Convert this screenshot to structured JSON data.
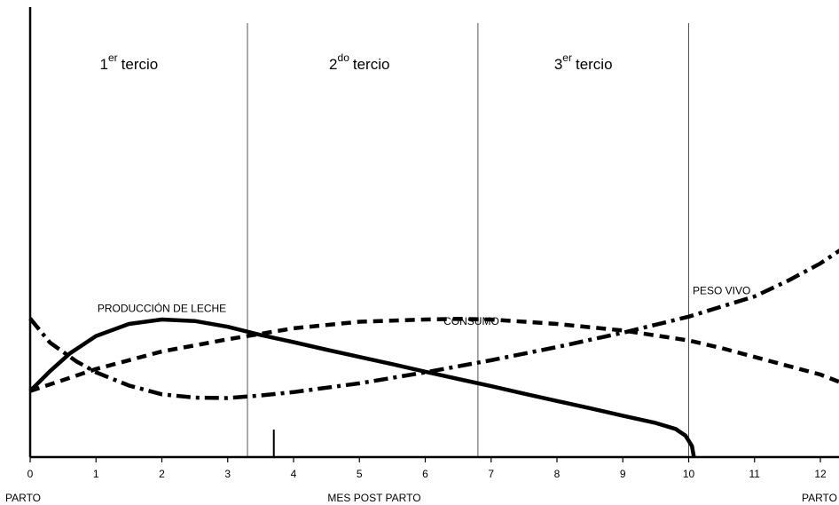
{
  "chart_data": {
    "type": "line",
    "xlabel": "MES POST PARTO",
    "ylabel": "",
    "xlim": [
      0,
      12.3
    ],
    "ylim": [
      0,
      100
    ],
    "grid": false,
    "legend": "none",
    "x_ticks": [
      {
        "value": 0,
        "label": "0"
      },
      {
        "value": 1,
        "label": "1"
      },
      {
        "value": 2,
        "label": "2"
      },
      {
        "value": 3,
        "label": "3"
      },
      {
        "value": 4,
        "label": "4"
      },
      {
        "value": 5,
        "label": "5"
      },
      {
        "value": 6,
        "label": "6"
      },
      {
        "value": 7,
        "label": "7"
      },
      {
        "value": 8,
        "label": "8"
      },
      {
        "value": 9,
        "label": "9"
      },
      {
        "value": 10,
        "label": "10"
      },
      {
        "value": 11,
        "label": "11"
      },
      {
        "value": 12,
        "label": "12"
      }
    ],
    "axis_end_labels": {
      "start": "PARTO",
      "end": "PARTO"
    },
    "dividers": [
      3.3,
      6.8,
      10
    ],
    "tercios": [
      {
        "num": "1",
        "sup": "er",
        "word": "tercio",
        "x": 1.5
      },
      {
        "num": "2",
        "sup": "do",
        "word": "tercio",
        "x": 5.0
      },
      {
        "num": "3",
        "sup": "er",
        "word": "tercio",
        "x": 8.4
      }
    ],
    "marker_tick": {
      "x": 3.7
    },
    "series": [
      {
        "name": "PRODUCCIÓN DE LECHE",
        "style": "solid",
        "label_anchor": {
          "x": 2.0,
          "y": 66
        },
        "x": [
          0,
          0.3,
          0.6,
          1.0,
          1.5,
          2.0,
          2.5,
          3.0,
          3.5,
          4.0,
          4.5,
          5.0,
          5.5,
          6.0,
          6.5,
          7.0,
          7.5,
          8.0,
          8.5,
          9.0,
          9.5,
          9.8,
          9.95,
          10.05,
          10.08
        ],
        "y": [
          30,
          39,
          47,
          55,
          60.5,
          62.5,
          61.8,
          59.2,
          55.5,
          52.2,
          48.8,
          45.5,
          42.2,
          38.8,
          35.5,
          32.2,
          28.8,
          25.5,
          22.2,
          18.8,
          15.5,
          12.8,
          9.8,
          5,
          0
        ]
      },
      {
        "name": "CONSUMO",
        "style": "dashed",
        "label_anchor": {
          "x": 6.7,
          "y": 60
        },
        "x": [
          0,
          1,
          2,
          3,
          4,
          5,
          6,
          6.5,
          7,
          8,
          9,
          10,
          10.5,
          11,
          12,
          12.3
        ],
        "y": [
          30,
          40,
          48,
          53.5,
          58.5,
          61.5,
          62.5,
          62.8,
          62.5,
          60.5,
          57.5,
          53,
          49.5,
          45.5,
          37.5,
          34
        ]
      },
      {
        "name": "PESO VIVO",
        "style": "dashdot",
        "label_anchor": {
          "x": 10.5,
          "y": 74
        },
        "x": [
          0,
          0.3,
          0.7,
          1.0,
          1.5,
          2.0,
          2.5,
          3.0,
          3.5,
          4.0,
          5.0,
          6.0,
          7.0,
          8.0,
          9.0,
          10.0,
          11.0,
          11.5,
          12.0,
          12.3
        ],
        "y": [
          63,
          52,
          43.5,
          38.5,
          32.5,
          28.5,
          27,
          26.8,
          28,
          29.5,
          33.5,
          38.5,
          44,
          50,
          56.5,
          63.8,
          73,
          80,
          88,
          94
        ]
      }
    ]
  }
}
